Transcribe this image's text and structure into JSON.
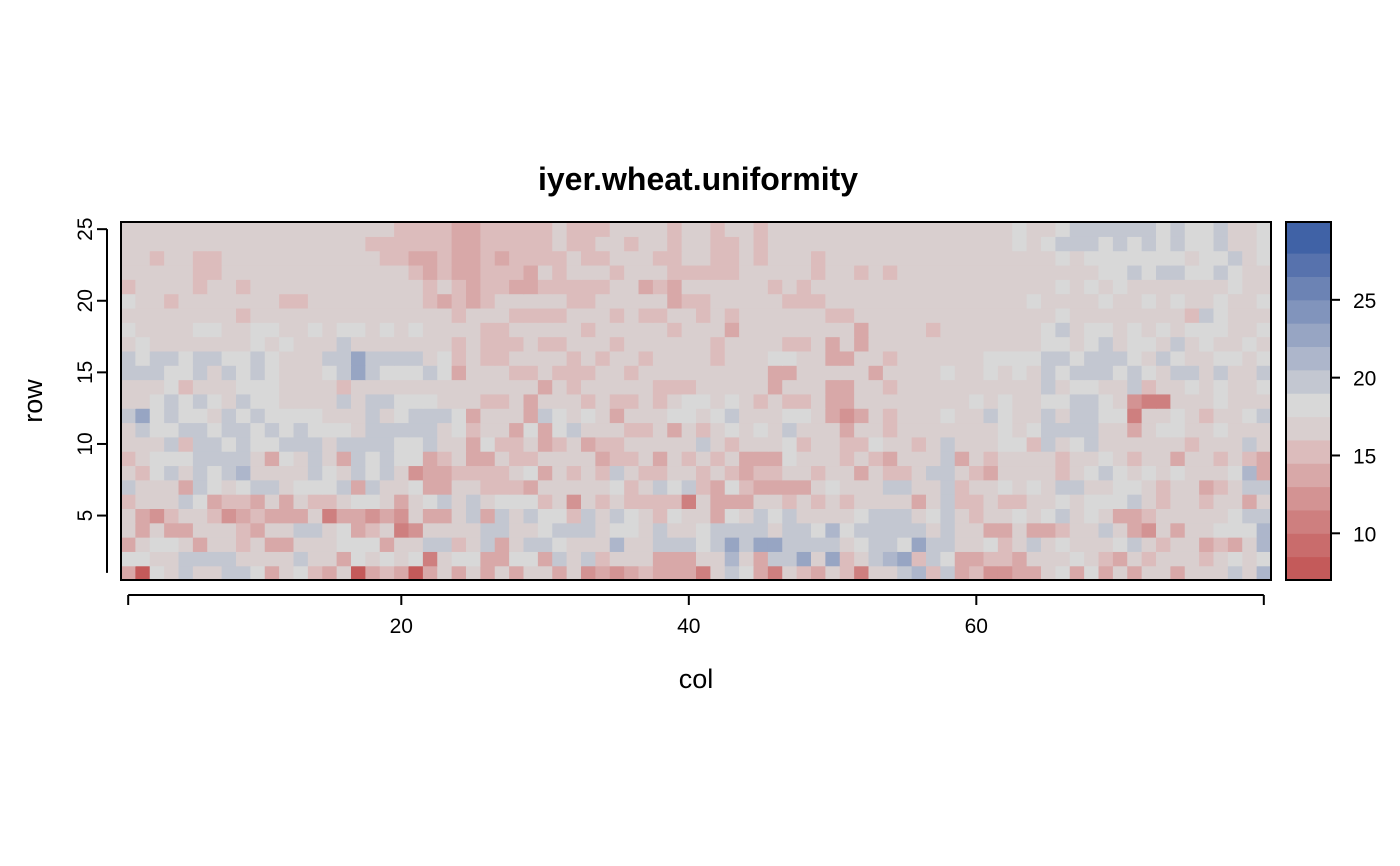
{
  "chart_data": {
    "type": "heatmap",
    "title": "iyer.wheat.uniformity",
    "xlabel": "col",
    "ylabel": "row",
    "ncols": 80,
    "nrows": 25,
    "xlim": [
      0.5,
      80.5
    ],
    "ylim": [
      0.5,
      25.5
    ],
    "x_ticks": [
      20,
      40,
      60
    ],
    "y_ticks": [
      5,
      10,
      15,
      20,
      25
    ],
    "colorbar": {
      "range": [
        7,
        30
      ],
      "breaks": [
        7,
        8.5,
        10,
        11.5,
        13,
        14.5,
        16,
        17.5,
        19,
        20.5,
        22,
        23.5,
        25,
        26.5,
        28,
        29.5
      ],
      "ticks": [
        10,
        15,
        20,
        25
      ],
      "colors": [
        "#c45a5a",
        "#c96c6c",
        "#ce7f7f",
        "#d39393",
        "#d8a8a8",
        "#dcbcbc",
        "#d9cfcf",
        "#d8d8d8",
        "#c3c7d1",
        "#adb6cb",
        "#97a5c3",
        "#8194bc",
        "#6c83b4",
        "#5772ad",
        "#4062a6"
      ]
    },
    "value_rows": [
      "H9LKMJKMMLHJLIHK9HIG6HJHJGJHKJHJFHFHIHHHDKMLHEKIGJIEJJMOINGIFFGHKLHLHJHKKHKJKMKO",
      "LLKJMNMMKKJKMJJHLJLKLEJLLHHLLGMJNIJKJHHHKKOKHMMPKPIJMOQIMLHHIIGJJKLKIHKIKJJIJLJL",
      "HJLLKHKJIJGGJKJLLLGJKMMIJNHKMMLJKJOKJMMNLMPNPPMMNNKLNNLPMMKJLIKMJLJKKLMKIKJHIHKO",
      "KHKHHKKJIGJKMNJLHIKEFJKJKNMKKLMMNJLLKMKKLNNMMKNMLOLNNMMMKNKJHHKHHIJJMKHFKHKJLLLO",
      "KHFIJKIFGIHHHJEGGFHFJHHKMGMJNLLIMJMLKILKKHLKMLMKKJKLNMMKLMKIJKLKLMJLKHGIJKJJKLNN",
      "IJKKMLHIIHJHJIIKLLJHKLMJMKLLLIJFJIJIIIIDJHGHJJIKIKIJJKJGKNIIKIIJJLJLLLMKIKJIJKHJ",
      "MJJKHMLJLMMJLLLNGMJKLHHJJIIIHJKKKJLIJMLMIGLIHHHHKLJKKMMJKMIJKLKLJMMKKLLKIKJHIKNM",
      "KILMJNLMOJKKKMLKMLNJFGGIIIIJLHJIKIMKIIJKIJIHIIKKIKJGKIIKMMKIHKJKKIKLMLKLKLKJKLOH",
      "IJLLLNMNMJHLKMJHNLMLLGIJGGJIIJKJJHIIJHKIJIJHHGLJKJIJIHKJKNHKIJKJKIKKLKIJKHJKIKIH",
      "KKKMIMNLNLLMMMKMMNMLLMKJHLIIJHIJHIIJKKJJMJIJKKLIKKIILKKIKNKJKLLIMKLMKJKKJKIJKJNK",
      "KNLLNMLMMLMLMLLLJNNMNMKLIJKHLHLNJKKIIKHKIKLKLJMJKJGJKIKJJJJJKLKLMMNMKKHKLLKKLJJK",
      "MPLMLLJNLMLLLLJKJNKLMMMLHJKKHMLKLJHKKKLLKLMKKJLLJGFGKIKJKLKJMLJKMJNMLLEKKLJIJKLM",
      "KJLMLNLKMLLKKKJMKMMLLLKJJIIJHKJJIKIIKIJLLJLJIKIIJGGJKKJJJJJLKLKKLLNMLKFEEKJKLKKK",
      "KJKLIKJKLLLJKJJIJJKKJJJJJJJKKHKIJJJKJIIIJJKJJHKKJGHKJIJJKKKKKKKKMJLLKKMIJKLKLKKL",
      "MNMLLNKMLMLJKKLMPMLLLMLHKJKIIJIIIKJIKKKKJJKJJHHJJJJJHJJKKLJJLKLKMLMMMLMLKMMKMKJN",
      "MLMMLMMLLMLKKKMMPNMNMKLIJIIJJKJIKIJJIJJKJIKJKLLKJHHJJIJJKKKKLLLLMMLMMNLKMLJKLLJL",
      "JLKKKKKJKLKLKKKMJKKKJJJIKIIIJIIJJJIJJJJJJIJJJJIIJGKHJJKJKJKJKKKKLLKLMKLLKMKLKJLK",
      "LKKKKLLKKLLKKLKLLKLKLJKJJIIJJJJJIJJJJJIJJJHJKJKKKJJHJKJJIJKKJKKJLMKLLKLKLKLLLJKL",
      "KJKKKKKKIJJKKJJJKJKJJJJIJJJIIIIJJJIJIIJJIJIJKJJJJIIJJJKJJJJKJJJKKLKKKKKKJKIMLKJK",
      "LKJIJKKJJJKIIJJKJJJJJIHIHIJJJJJIIJJJJJHIIJJJJJIIIJJJJKJKJKKKKKKLKKKKLKKLKLKKLKKL",
      "IJKJJIJJIKJKKJJJJJJJJIJIHIIHHIIIIIJJHIHJJJJJJIJIJJJJJJJJJJJKKJJKKLKLKLKKJKKKKLKK",
      "JKKJJIIJJJJJJJJJJJJJIHIHHIIIHJIJJJIJJJIIIIIJJJJJIJJIJIJJJJKJKJKKKKKKLLMLMMLLMLJK",
      "JJIJJIIJJJJJJJJJJJIIHHIHHIHIIIIJIIJJJIIJJIIJIJJJIJJJJJJJJJKKKKKKKLKLLLLLLLKLLMKL",
      "KKJKJJKJJJJJKJJJJIIIIIIHHIIIIIJIIJJIJJIJJIIJIJJJJJJJJJKJJKKKKKLKLMNNLMLMLMLLMKKL",
      "KKKKJJJKJKJKKKJKJJJIIIIHHIIIIIJIIIJJJJIJJIJJIJJJKJJJJJKJJKKKKKLKKLMNNMMNLMLLMKKL"
    ]
  }
}
